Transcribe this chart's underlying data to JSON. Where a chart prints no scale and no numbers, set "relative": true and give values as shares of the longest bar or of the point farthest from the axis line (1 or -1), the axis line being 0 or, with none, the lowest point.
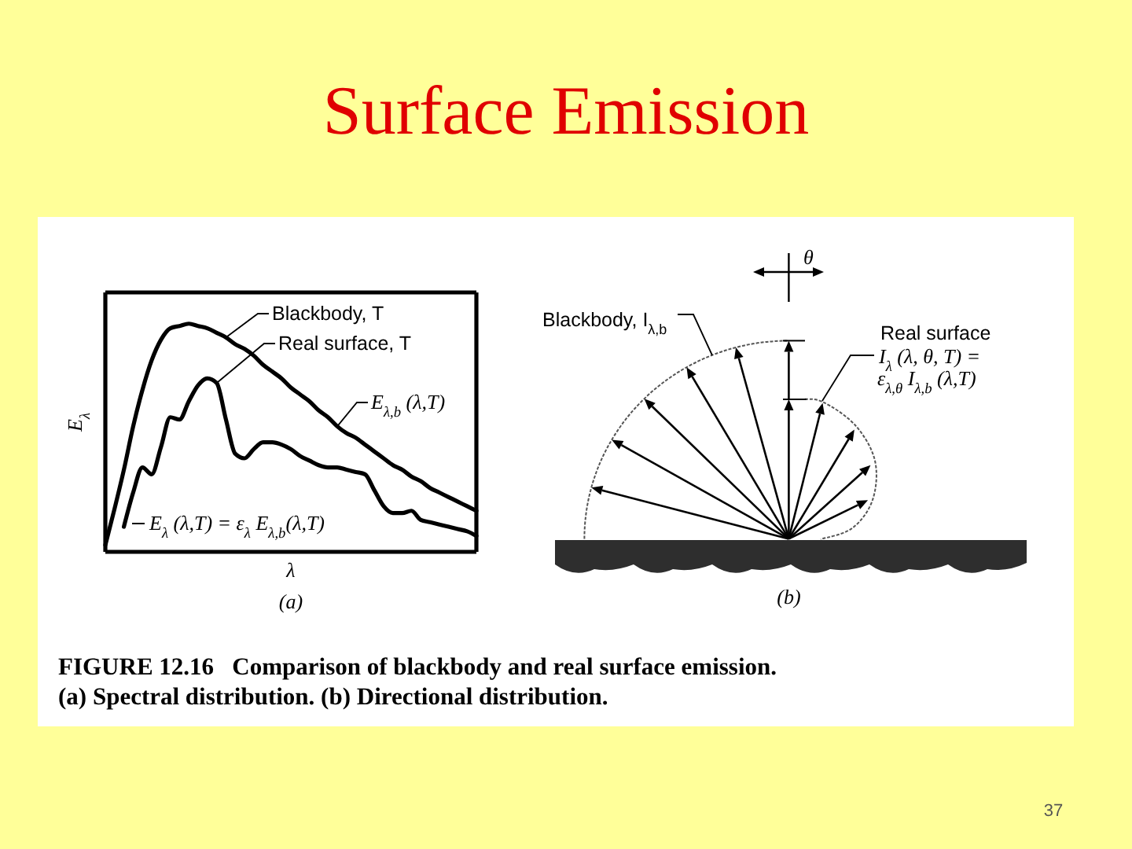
{
  "chart_data": [
    {
      "type": "line",
      "title": "Surface Emission",
      "xlabel": "λ",
      "ylabel": "E$_{λ}$",
      "relative": true,
      "marker": "none",
      "line_style": "solid",
      "categories": [
        null,
        null,
        null,
        null,
        null,
        null,
        null,
        null,
        null,
        null,
        null,
        null,
        null,
        null,
        null,
        null,
        null,
        null,
        null,
        null,
        null,
        null,
        null,
        null,
        null,
        null,
        null,
        null,
        null,
        null,
        null,
        null,
        null,
        null,
        null,
        null,
        null,
        null,
        null,
        null,
        null
      ],
      "series": [
        {
          "name": "Blackbody, T",
          "color": "#000000",
          "values": [
            0.03,
            0.19,
            0.36,
            0.55,
            0.71,
            0.84,
            0.93,
            0.98,
            0.99,
            1,
            0.99,
            0.98,
            0.96,
            0.94,
            0.91,
            0.89,
            0.86,
            0.82,
            0.79,
            0.76,
            0.72,
            0.69,
            0.66,
            0.62,
            0.59,
            0.55,
            0.52,
            0.5,
            0.47,
            0.44,
            0.41,
            0.38,
            0.36,
            0.33,
            0.31,
            0.28,
            0.26,
            0.24,
            0.22,
            0.2,
            0.18
          ]
        },
        {
          "name": "Real surface, T",
          "color": "#000000",
          "values": [
            null,
            null,
            0.11,
            0.26,
            0.37,
            0.34,
            0.46,
            0.59,
            0.58,
            0.66,
            0.73,
            0.76,
            0.74,
            0.58,
            0.43,
            0.41,
            0.45,
            0.48,
            0.48,
            0.47,
            0.45,
            0.42,
            0.4,
            0.38,
            0.37,
            0.37,
            0.36,
            0.35,
            0.34,
            0.27,
            0.2,
            0.17,
            0.17,
            0.18,
            0.14,
            0.13,
            0.12,
            0.11,
            0.1,
            0.09,
            0.07
          ]
        }
      ],
      "annotations": [
        "E$_{λ,b}$ (λ,T)",
        "E$_{λ}$ (λ,T) = ε$_{λ}$ E$_{λ,b}$(λ,T)",
        "(a)",
        "FIGURE 12.16   Comparison of blackbody and real surface emission.",
        "(a) Spectral distribution. (b) Directional distribution.",
        "37"
      ]
    },
    {
      "type": "other",
      "annotations": [
        "θ",
        "Blackbody, I$_{λ,b}$",
        "Real surface",
        "I$_{λ}$ (λ, θ, T) =",
        "ε$_{λ,θ}$ I$_{λ,b}$ (λ,T)",
        "(b)"
      ]
    }
  ]
}
